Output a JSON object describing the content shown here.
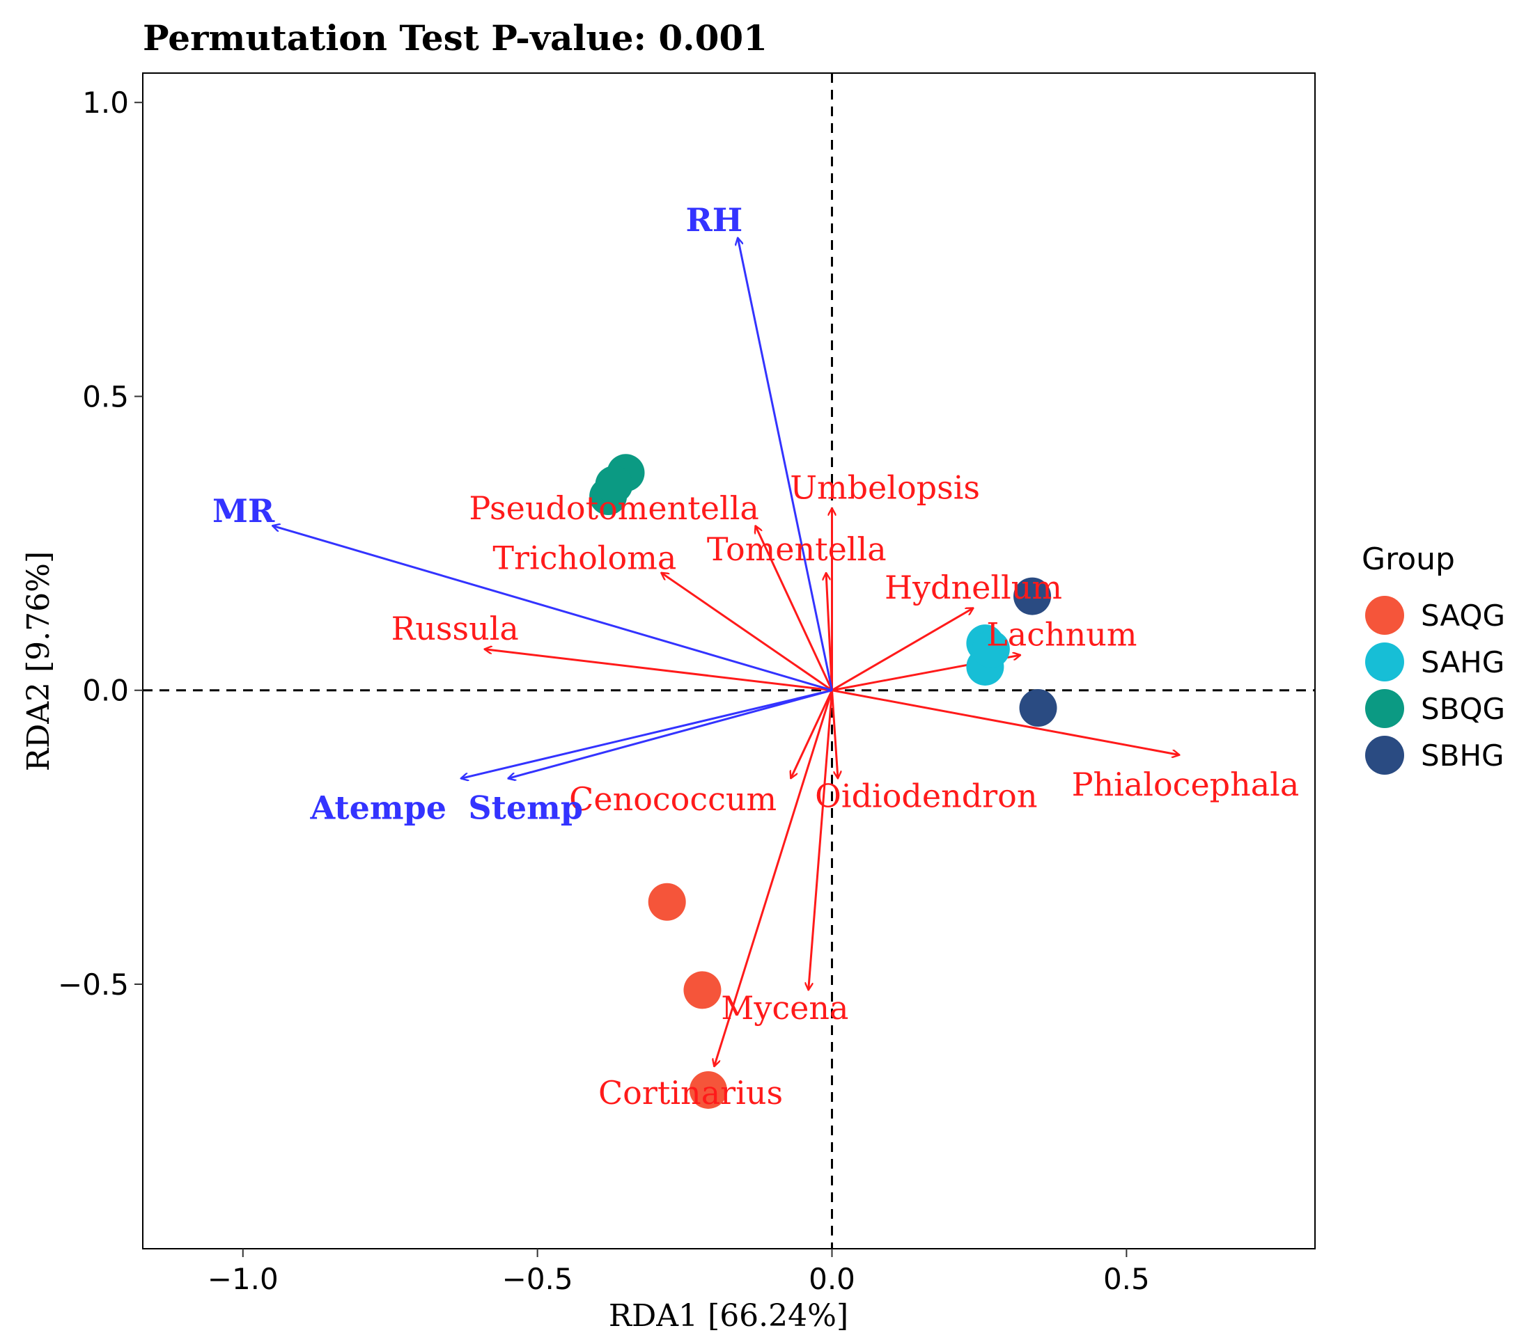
{
  "chart_data": {
    "type": "scatter",
    "title": "Permutation Test P-value: 0.001",
    "xlabel": "RDA1 [66.24%]",
    "ylabel": "RDA2 [9.76%]",
    "xlim": [
      -1.17,
      0.82
    ],
    "ylim": [
      -0.95,
      1.05
    ],
    "x_ticks": [
      -1.0,
      -0.5,
      0.0,
      0.5
    ],
    "x_tick_labels": [
      "−1.0",
      "−0.5",
      "0.0",
      "0.5"
    ],
    "y_ticks": [
      1.0,
      0.5,
      0.0,
      -0.5
    ],
    "y_tick_labels": [
      "1.0",
      "0.5",
      "0.0",
      "−0.5"
    ],
    "grid": false,
    "colors": {
      "species": "#ff1a1a",
      "environment": "#3333ff",
      "reference_lines": "#000000"
    },
    "legend": {
      "title": "Group",
      "position": "right",
      "entries": [
        {
          "name": "SAQG",
          "color": "#f5553a"
        },
        {
          "name": "SAHG",
          "color": "#17bed6"
        },
        {
          "name": "SBQG",
          "color": "#0b9a83"
        },
        {
          "name": "SBHG",
          "color": "#2a4b82"
        }
      ]
    },
    "series": [
      {
        "name": "SAQG",
        "color": "#f5553a",
        "points": [
          [
            -0.28,
            -0.36
          ],
          [
            -0.22,
            -0.51
          ],
          [
            -0.21,
            -0.68
          ]
        ]
      },
      {
        "name": "SAHG",
        "color": "#17bed6",
        "points": [
          [
            0.26,
            0.08
          ],
          [
            0.26,
            0.04
          ],
          [
            0.27,
            0.07
          ]
        ]
      },
      {
        "name": "SBQG",
        "color": "#0b9a83",
        "points": [
          [
            -0.35,
            0.37
          ],
          [
            -0.38,
            0.33
          ],
          [
            -0.37,
            0.35
          ]
        ]
      },
      {
        "name": "SBHG",
        "color": "#2a4b82",
        "points": [
          [
            0.34,
            0.16
          ],
          [
            0.35,
            -0.03
          ]
        ]
      }
    ],
    "species_arrows": [
      {
        "name": "Pseudotomentella",
        "x": -0.13,
        "y": 0.28,
        "label_x": -0.37,
        "label_y": 0.31
      },
      {
        "name": "Umbelopsis",
        "x": 0.0,
        "y": 0.31,
        "label_x": 0.09,
        "label_y": 0.345
      },
      {
        "name": "Tomentella",
        "x": -0.01,
        "y": 0.2,
        "label_x": -0.06,
        "label_y": 0.24
      },
      {
        "name": "Tricholoma",
        "x": -0.29,
        "y": 0.2,
        "label_x": -0.42,
        "label_y": 0.225
      },
      {
        "name": "Hydnellum",
        "x": 0.24,
        "y": 0.14,
        "label_x": 0.24,
        "label_y": 0.175
      },
      {
        "name": "Lachnum",
        "x": 0.32,
        "y": 0.06,
        "label_x": 0.39,
        "label_y": 0.095
      },
      {
        "name": "Russula",
        "x": -0.59,
        "y": 0.07,
        "label_x": -0.64,
        "label_y": 0.105
      },
      {
        "name": "Phialocephala",
        "x": 0.59,
        "y": -0.11,
        "label_x": 0.6,
        "label_y": -0.16
      },
      {
        "name": "Cenococcum",
        "x": -0.07,
        "y": -0.15,
        "label_x": -0.27,
        "label_y": -0.185
      },
      {
        "name": "Oidiodendron",
        "x": 0.01,
        "y": -0.15,
        "label_x": 0.16,
        "label_y": -0.18
      },
      {
        "name": "Mycena",
        "x": -0.04,
        "y": -0.51,
        "label_x": -0.08,
        "label_y": -0.54
      },
      {
        "name": "Cortinarius",
        "x": -0.2,
        "y": -0.64,
        "label_x": -0.24,
        "label_y": -0.685
      }
    ],
    "env_arrows": [
      {
        "name": "RH",
        "x": -0.16,
        "y": 0.77,
        "label_x": -0.2,
        "label_y": 0.8
      },
      {
        "name": "MR",
        "x": -0.95,
        "y": 0.28,
        "label_x": -0.999,
        "label_y": 0.305
      },
      {
        "name": "Atempe",
        "x": -0.63,
        "y": -0.15,
        "label_x": -0.77,
        "label_y": -0.2
      },
      {
        "name": "Stemp",
        "x": -0.55,
        "y": -0.15,
        "label_x": -0.52,
        "label_y": -0.2
      }
    ]
  }
}
